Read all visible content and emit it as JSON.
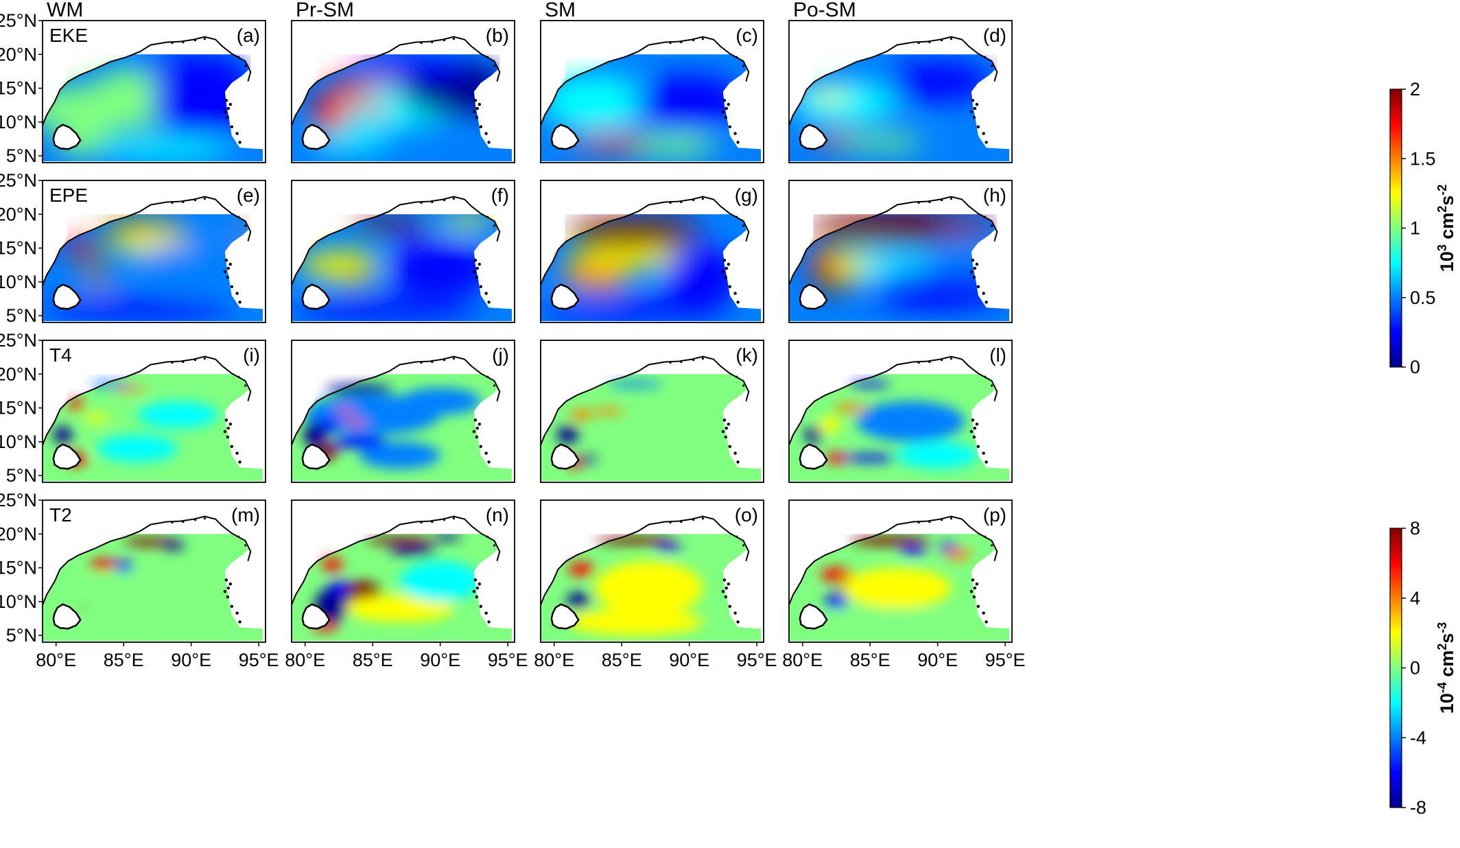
{
  "columns": [
    "WM",
    "Pr-SM",
    "SM",
    "Po-SM"
  ],
  "rows": [
    {
      "label": "EKE",
      "panels": [
        "(a)",
        "(b)",
        "(c)",
        "(d)"
      ],
      "colorbar": "eke"
    },
    {
      "label": "EPE",
      "panels": [
        "(e)",
        "(f)",
        "(g)",
        "(h)"
      ],
      "colorbar": "eke"
    },
    {
      "label": "T4",
      "panels": [
        "(i)",
        "(j)",
        "(k)",
        "(l)"
      ],
      "colorbar": "trans"
    },
    {
      "label": "T2",
      "panels": [
        "(m)",
        "(n)",
        "(o)",
        "(p)"
      ],
      "colorbar": "trans"
    }
  ],
  "lat_ticks": [
    "25°N",
    "20°N",
    "15°N",
    "10°N",
    "5°N"
  ],
  "lon_ticks": [
    "80°E",
    "85°E",
    "90°E",
    "95°E"
  ],
  "colorbars": {
    "eke": {
      "ticks": [
        "2",
        "1.5",
        "1",
        "0.5",
        "0"
      ],
      "range": [
        0,
        2
      ],
      "unit_base": "10",
      "unit_exp": "3",
      "unit_mid": " cm",
      "unit_exp2": "2",
      "unit_mid2": "s",
      "unit_exp3": "-2"
    },
    "trans": {
      "ticks": [
        "8",
        "4",
        "0",
        "-4",
        "-8"
      ],
      "range": [
        -8,
        8
      ],
      "unit_base": "10",
      "unit_exp": "-4",
      "unit_mid": " cm",
      "unit_exp2": "2",
      "unit_mid2": "s",
      "unit_exp3": "-3"
    }
  },
  "colormap": "jet",
  "jet_colors": [
    "#00008f",
    "#0000ff",
    "#0080ff",
    "#00ffff",
    "#80ff80",
    "#ffff00",
    "#ff8000",
    "#ff0000",
    "#800000"
  ],
  "map_extent": {
    "lon": [
      79,
      95.5
    ],
    "lat": [
      4,
      25
    ]
  }
}
